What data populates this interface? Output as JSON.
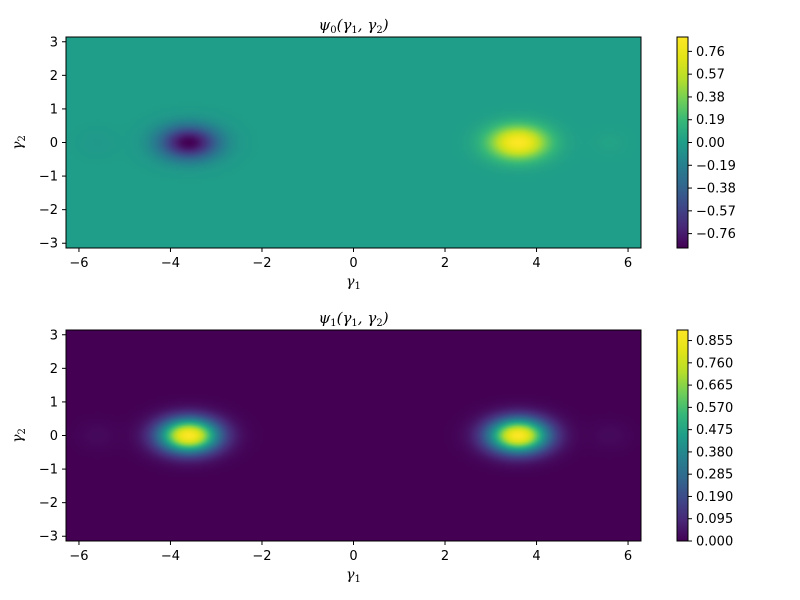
{
  "chart_data": [
    {
      "type": "heatmap",
      "title": "ψ0(γ1, γ2)",
      "title_parts": {
        "psi": "ψ",
        "psi_sub": "0",
        "open": "(",
        "g1": "γ",
        "g1_sub": "1",
        "sep": ", ",
        "g2": "γ",
        "g2_sub": "2",
        "close": ")"
      },
      "xlabel": {
        "sym": "γ",
        "sub": "1"
      },
      "ylabel": {
        "sym": "γ",
        "sub": "2"
      },
      "xlim": [
        -6.283,
        6.283
      ],
      "ylim": [
        -3.1416,
        3.1416
      ],
      "xticks": [
        -6,
        -4,
        -2,
        0,
        2,
        4,
        6
      ],
      "xtick_labels": [
        "−6",
        "−4",
        "−2",
        "0",
        "2",
        "4",
        "6"
      ],
      "yticks": [
        -3,
        -2,
        -1,
        0,
        1,
        2,
        3
      ],
      "ytick_labels": [
        "−3",
        "−2",
        "−1",
        "0",
        "1",
        "2",
        "3"
      ],
      "colormap": "viridis",
      "zlim": [
        -0.88,
        0.88
      ],
      "colorbar_ticks": [
        0.76,
        0.57,
        0.38,
        0.19,
        0.0,
        -0.19,
        -0.38,
        -0.57,
        -0.76
      ],
      "colorbar_labels": [
        "0.76",
        "0.57",
        "0.38",
        "0.19",
        "0.00",
        "−0.19",
        "−0.38",
        "−0.57",
        "−0.76"
      ],
      "features": [
        {
          "x": -3.6,
          "y": 0.0,
          "amplitude": -0.88,
          "sigma_x": 0.45,
          "sigma_y": 0.35
        },
        {
          "x": 3.6,
          "y": 0.0,
          "amplitude": 0.88,
          "sigma_x": 0.45,
          "sigma_y": 0.35
        },
        {
          "x": -5.6,
          "y": 0.0,
          "amplitude": -0.03,
          "sigma_x": 0.3,
          "sigma_y": 0.3
        },
        {
          "x": 5.6,
          "y": 0.0,
          "amplitude": 0.03,
          "sigma_x": 0.3,
          "sigma_y": 0.3
        }
      ]
    },
    {
      "type": "heatmap",
      "title": "ψ1(γ1, γ2)",
      "title_parts": {
        "psi": "ψ",
        "psi_sub": "1",
        "open": "(",
        "g1": "γ",
        "g1_sub": "1",
        "sep": ", ",
        "g2": "γ",
        "g2_sub": "2",
        "close": ")"
      },
      "xlabel": {
        "sym": "γ",
        "sub": "1"
      },
      "ylabel": {
        "sym": "γ",
        "sub": "2"
      },
      "xlim": [
        -6.283,
        6.283
      ],
      "ylim": [
        -3.1416,
        3.1416
      ],
      "xticks": [
        -6,
        -4,
        -2,
        0,
        2,
        4,
        6
      ],
      "xtick_labels": [
        "−6",
        "−4",
        "−2",
        "0",
        "2",
        "4",
        "6"
      ],
      "yticks": [
        -3,
        -2,
        -1,
        0,
        1,
        2,
        3
      ],
      "ytick_labels": [
        "−3",
        "−2",
        "−1",
        "0",
        "1",
        "2",
        "3"
      ],
      "colormap": "viridis",
      "zlim": [
        0.0,
        0.9
      ],
      "colorbar_ticks": [
        0.855,
        0.76,
        0.665,
        0.57,
        0.475,
        0.38,
        0.285,
        0.19,
        0.095,
        0.0
      ],
      "colorbar_labels": [
        "0.855",
        "0.760",
        "0.665",
        "0.570",
        "0.475",
        "0.380",
        "0.285",
        "0.190",
        "0.095",
        "0.000"
      ],
      "features": [
        {
          "x": -3.6,
          "y": 0.0,
          "amplitude": 0.9,
          "sigma_x": 0.45,
          "sigma_y": 0.35
        },
        {
          "x": 3.6,
          "y": 0.0,
          "amplitude": 0.9,
          "sigma_x": 0.45,
          "sigma_y": 0.35
        },
        {
          "x": -5.6,
          "y": 0.0,
          "amplitude": 0.02,
          "sigma_x": 0.3,
          "sigma_y": 0.3
        },
        {
          "x": 5.6,
          "y": 0.0,
          "amplitude": 0.02,
          "sigma_x": 0.3,
          "sigma_y": 0.3
        }
      ]
    }
  ]
}
